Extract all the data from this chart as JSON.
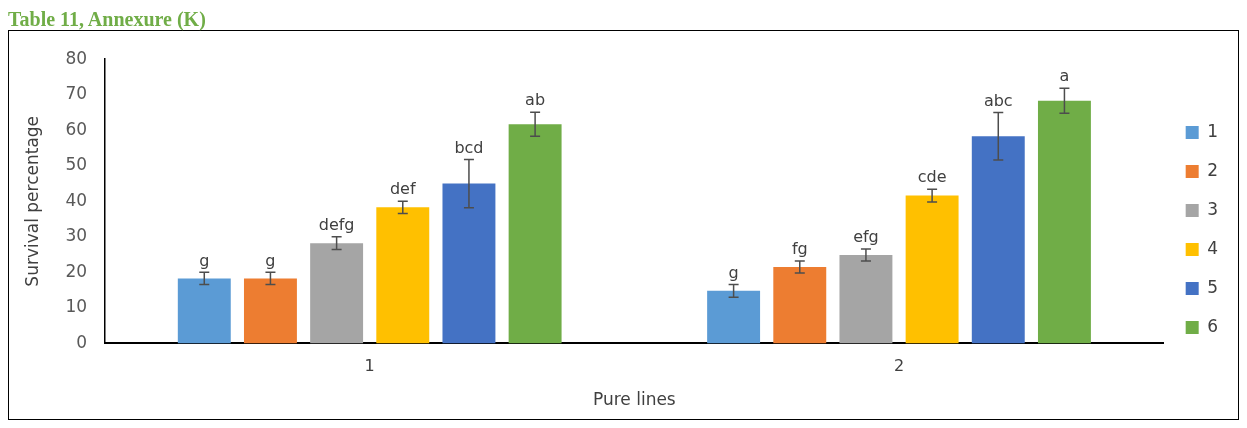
{
  "chart_data": {
    "type": "bar",
    "title": "Table 11, Annexure (K)",
    "xlabel": "Pure lines",
    "ylabel": "Survival percentage",
    "categories": [
      "1",
      "2"
    ],
    "series": [
      {
        "name": "1",
        "color": "#5b9bd5",
        "values": [
          18.3,
          14.8
        ],
        "errors": [
          1.7,
          1.8
        ],
        "value_labels": [
          "g",
          "g"
        ]
      },
      {
        "name": "2",
        "color": "#ed7d31",
        "values": [
          18.3,
          21.5
        ],
        "errors": [
          1.7,
          1.7
        ],
        "value_labels": [
          "g",
          "fg"
        ]
      },
      {
        "name": "3",
        "color": "#a5a5a5",
        "values": [
          28.2,
          24.9
        ],
        "errors": [
          1.8,
          1.7
        ],
        "value_labels": [
          "defg",
          "efg"
        ]
      },
      {
        "name": "4",
        "color": "#ffc000",
        "values": [
          38.3,
          41.6
        ],
        "errors": [
          1.7,
          1.8
        ],
        "value_labels": [
          "def",
          "cde"
        ]
      },
      {
        "name": "5",
        "color": "#4472c4",
        "values": [
          45.0,
          58.3
        ],
        "errors": [
          6.8,
          6.7
        ],
        "value_labels": [
          "bcd",
          "abc"
        ]
      },
      {
        "name": "6",
        "color": "#70ad47",
        "values": [
          61.7,
          68.3
        ],
        "errors": [
          3.4,
          3.5
        ],
        "value_labels": [
          "ab",
          "a"
        ]
      }
    ],
    "ylim": [
      0,
      80
    ],
    "yticks": [
      0,
      10,
      20,
      30,
      40,
      50,
      60,
      70,
      80
    ],
    "grid": false,
    "legend": "right"
  }
}
